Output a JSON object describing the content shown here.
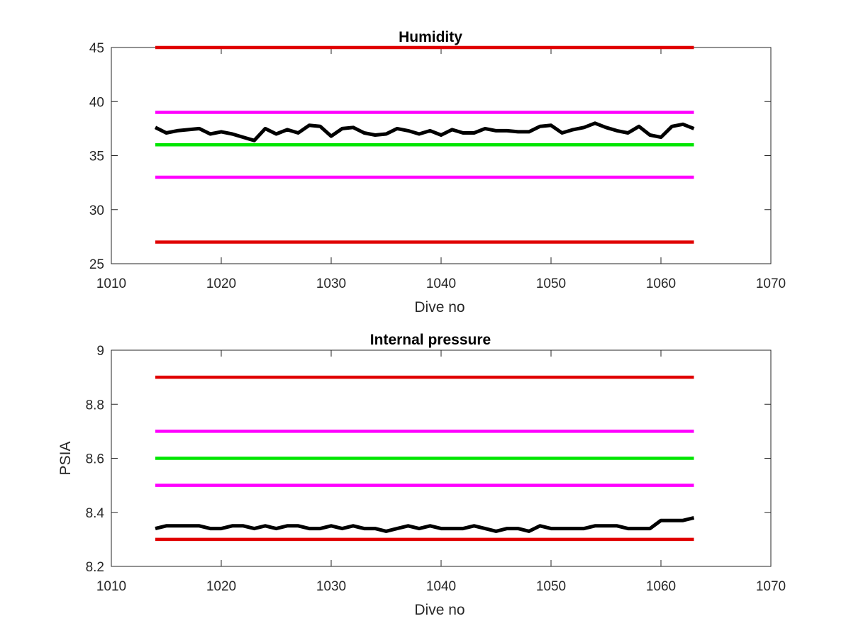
{
  "chart_data": [
    {
      "type": "line",
      "title": "Humidity",
      "xlabel": "Dive no",
      "ylabel": "",
      "xlim": [
        1010,
        1070
      ],
      "ylim": [
        25,
        45
      ],
      "xticks": [
        1010,
        1020,
        1030,
        1040,
        1050,
        1060,
        1070
      ],
      "yticks": [
        25,
        30,
        35,
        40,
        45
      ],
      "grid": false,
      "series": [
        {
          "color": "#e00000",
          "x": [
            1014,
            1063
          ],
          "values": [
            45,
            45
          ]
        },
        {
          "color": "#ff00ff",
          "x": [
            1014,
            1063
          ],
          "values": [
            39,
            39
          ]
        },
        {
          "color": "#00e600",
          "x": [
            1014,
            1063
          ],
          "values": [
            36,
            36
          ]
        },
        {
          "color": "#ff00ff",
          "x": [
            1014,
            1063
          ],
          "values": [
            33,
            33
          ]
        },
        {
          "color": "#e00000",
          "x": [
            1014,
            1063
          ],
          "values": [
            27,
            27
          ]
        },
        {
          "color": "#000000",
          "x": [
            1014,
            1015,
            1016,
            1017,
            1018,
            1019,
            1020,
            1021,
            1022,
            1023,
            1024,
            1025,
            1026,
            1027,
            1028,
            1029,
            1030,
            1031,
            1032,
            1033,
            1034,
            1035,
            1036,
            1037,
            1038,
            1039,
            1040,
            1041,
            1042,
            1043,
            1044,
            1045,
            1046,
            1047,
            1048,
            1049,
            1050,
            1051,
            1052,
            1053,
            1054,
            1055,
            1056,
            1057,
            1058,
            1059,
            1060,
            1061,
            1062,
            1063
          ],
          "values": [
            37.6,
            37.1,
            37.3,
            37.4,
            37.5,
            37.0,
            37.2,
            37.0,
            36.7,
            36.4,
            37.5,
            37.0,
            37.4,
            37.1,
            37.8,
            37.7,
            36.8,
            37.5,
            37.6,
            37.1,
            36.9,
            37.0,
            37.5,
            37.3,
            37.0,
            37.3,
            36.9,
            37.4,
            37.1,
            37.1,
            37.5,
            37.3,
            37.3,
            37.2,
            37.2,
            37.7,
            37.8,
            37.1,
            37.4,
            37.6,
            38.0,
            37.6,
            37.3,
            37.1,
            37.7,
            36.9,
            36.7,
            37.7,
            37.9,
            37.5
          ]
        }
      ]
    },
    {
      "type": "line",
      "title": "Internal pressure",
      "xlabel": "Dive no",
      "ylabel": "PSIA",
      "xlim": [
        1010,
        1070
      ],
      "ylim": [
        8.2,
        9
      ],
      "xticks": [
        1010,
        1020,
        1030,
        1040,
        1050,
        1060,
        1070
      ],
      "yticks": [
        8.2,
        8.4,
        8.6,
        8.8,
        9
      ],
      "grid": false,
      "series": [
        {
          "color": "#e00000",
          "x": [
            1014,
            1063
          ],
          "values": [
            8.9,
            8.9
          ]
        },
        {
          "color": "#ff00ff",
          "x": [
            1014,
            1063
          ],
          "values": [
            8.7,
            8.7
          ]
        },
        {
          "color": "#00e600",
          "x": [
            1014,
            1063
          ],
          "values": [
            8.6,
            8.6
          ]
        },
        {
          "color": "#ff00ff",
          "x": [
            1014,
            1063
          ],
          "values": [
            8.5,
            8.5
          ]
        },
        {
          "color": "#e00000",
          "x": [
            1014,
            1063
          ],
          "values": [
            8.3,
            8.3
          ]
        },
        {
          "color": "#000000",
          "x": [
            1014,
            1015,
            1016,
            1017,
            1018,
            1019,
            1020,
            1021,
            1022,
            1023,
            1024,
            1025,
            1026,
            1027,
            1028,
            1029,
            1030,
            1031,
            1032,
            1033,
            1034,
            1035,
            1036,
            1037,
            1038,
            1039,
            1040,
            1041,
            1042,
            1043,
            1044,
            1045,
            1046,
            1047,
            1048,
            1049,
            1050,
            1051,
            1052,
            1053,
            1054,
            1055,
            1056,
            1057,
            1058,
            1059,
            1060,
            1061,
            1062,
            1063
          ],
          "values": [
            8.34,
            8.35,
            8.35,
            8.35,
            8.35,
            8.34,
            8.34,
            8.35,
            8.35,
            8.34,
            8.35,
            8.34,
            8.35,
            8.35,
            8.34,
            8.34,
            8.35,
            8.34,
            8.35,
            8.34,
            8.34,
            8.33,
            8.34,
            8.35,
            8.34,
            8.35,
            8.34,
            8.34,
            8.34,
            8.35,
            8.34,
            8.33,
            8.34,
            8.34,
            8.33,
            8.35,
            8.34,
            8.34,
            8.34,
            8.34,
            8.35,
            8.35,
            8.35,
            8.34,
            8.34,
            8.34,
            8.37,
            8.37,
            8.37,
            8.38
          ]
        }
      ]
    }
  ]
}
